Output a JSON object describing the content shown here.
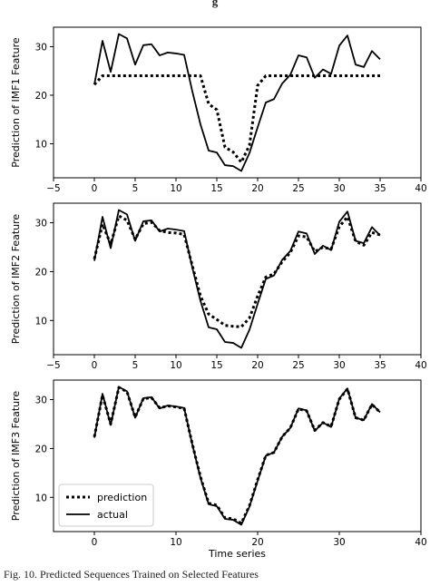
{
  "figure": {
    "title_fragment": "g",
    "caption": "Fig. 10. Predicted Sequences Trained on Selected Features"
  },
  "chart_data": [
    {
      "type": "line",
      "title": "",
      "xlabel": "",
      "ylabel": "Prediction of IMF1 Feature",
      "xlim": [
        -5,
        40
      ],
      "ylim": [
        3,
        34
      ],
      "xticks": [
        -5,
        0,
        5,
        10,
        15,
        20,
        25,
        30,
        35,
        40
      ],
      "yticks": [
        10,
        20,
        30
      ],
      "grid": false,
      "x": [
        0,
        1,
        2,
        3,
        4,
        5,
        6,
        7,
        8,
        9,
        10,
        11,
        12,
        13,
        14,
        15,
        16,
        17,
        18,
        19,
        20,
        21,
        22,
        23,
        24,
        25,
        26,
        27,
        28,
        29,
        30,
        31,
        32,
        33,
        34,
        35
      ],
      "series": [
        {
          "name": "actual",
          "style": "solid",
          "color": "#000000",
          "values": [
            22.2,
            31.2,
            24.8,
            32.6,
            31.7,
            26.3,
            30.3,
            30.5,
            28.2,
            28.8,
            28.6,
            28.3,
            20.8,
            14.0,
            8.6,
            8.2,
            5.6,
            5.4,
            4.4,
            8.1,
            13.4,
            18.5,
            19.2,
            22.4,
            24.2,
            28.2,
            27.8,
            23.6,
            25.3,
            24.4,
            30.2,
            32.3,
            26.3,
            25.8,
            29.1,
            27.4
          ]
        },
        {
          "name": "prediction",
          "style": "dotted",
          "color": "#000000",
          "values": [
            22.2,
            24.0,
            24.0,
            24.0,
            24.0,
            24.0,
            24.0,
            24.0,
            24.0,
            24.0,
            24.0,
            24.0,
            24.0,
            24.0,
            18.2,
            17.0,
            9.3,
            8.3,
            6.2,
            9.7,
            22.0,
            24.0,
            24.0,
            24.0,
            24.0,
            24.0,
            24.0,
            24.0,
            24.0,
            24.0,
            24.0,
            24.0,
            24.0,
            24.0,
            24.0,
            24.0
          ]
        }
      ]
    },
    {
      "type": "line",
      "title": "",
      "xlabel": "",
      "ylabel": "Prediction of IMF2 Feature",
      "xlim": [
        -5,
        40
      ],
      "ylim": [
        3,
        34
      ],
      "xticks": [
        -5,
        0,
        5,
        10,
        15,
        20,
        25,
        30,
        35,
        40
      ],
      "yticks": [
        10,
        20,
        30
      ],
      "grid": false,
      "x": [
        0,
        1,
        2,
        3,
        4,
        5,
        6,
        7,
        8,
        9,
        10,
        11,
        12,
        13,
        14,
        15,
        16,
        17,
        18,
        19,
        20,
        21,
        22,
        23,
        24,
        25,
        26,
        27,
        28,
        29,
        30,
        31,
        32,
        33,
        34,
        35
      ],
      "series": [
        {
          "name": "actual",
          "style": "solid",
          "color": "#000000",
          "values": [
            22.2,
            31.2,
            24.8,
            32.6,
            31.7,
            26.3,
            30.3,
            30.5,
            28.2,
            28.8,
            28.6,
            28.3,
            20.8,
            14.0,
            8.6,
            8.2,
            5.6,
            5.4,
            4.4,
            8.1,
            13.4,
            18.5,
            19.2,
            22.4,
            24.2,
            28.2,
            27.8,
            23.6,
            25.3,
            24.4,
            30.2,
            32.3,
            26.3,
            25.8,
            29.1,
            27.4
          ]
        },
        {
          "name": "prediction",
          "style": "dotted",
          "color": "#000000",
          "values": [
            22.6,
            29.7,
            25.6,
            31.4,
            30.5,
            26.6,
            29.8,
            30.1,
            28.4,
            28.0,
            27.9,
            27.6,
            21.2,
            15.0,
            11.3,
            10.2,
            9.0,
            8.8,
            8.7,
            10.5,
            15.0,
            18.9,
            19.5,
            22.0,
            23.9,
            27.3,
            27.1,
            24.1,
            25.0,
            24.6,
            29.2,
            31.2,
            26.2,
            25.4,
            28.0,
            27.5
          ]
        }
      ]
    },
    {
      "type": "line",
      "title": "",
      "xlabel": "Time series",
      "ylabel": "Prediction of IMF3 Feature",
      "xlim": [
        -5,
        40
      ],
      "ylim": [
        3,
        34
      ],
      "xticks": [
        0,
        10,
        20,
        30,
        40
      ],
      "yticks": [
        10,
        20,
        30
      ],
      "grid": false,
      "legend": {
        "placement": "lower-left",
        "entries": [
          "prediction",
          "actual"
        ]
      },
      "x": [
        0,
        1,
        2,
        3,
        4,
        5,
        6,
        7,
        8,
        9,
        10,
        11,
        12,
        13,
        14,
        15,
        16,
        17,
        18,
        19,
        20,
        21,
        22,
        23,
        24,
        25,
        26,
        27,
        28,
        29,
        30,
        31,
        32,
        33,
        34,
        35
      ],
      "series": [
        {
          "name": "prediction",
          "style": "dotted",
          "color": "#000000",
          "values": [
            22.4,
            30.9,
            25.0,
            32.5,
            31.6,
            26.4,
            30.2,
            30.4,
            28.3,
            28.7,
            28.5,
            28.2,
            20.9,
            14.2,
            8.8,
            8.4,
            5.8,
            5.6,
            4.7,
            8.3,
            13.6,
            18.6,
            19.2,
            22.4,
            24.2,
            28.1,
            27.7,
            23.7,
            25.3,
            24.5,
            30.1,
            32.2,
            26.3,
            25.8,
            29.0,
            27.4
          ]
        },
        {
          "name": "actual",
          "style": "solid",
          "color": "#000000",
          "values": [
            22.2,
            31.2,
            24.8,
            32.6,
            31.7,
            26.3,
            30.3,
            30.5,
            28.2,
            28.8,
            28.6,
            28.3,
            20.8,
            14.0,
            8.6,
            8.2,
            5.6,
            5.4,
            4.4,
            8.1,
            13.4,
            18.5,
            19.2,
            22.4,
            24.2,
            28.2,
            27.8,
            23.6,
            25.3,
            24.4,
            30.2,
            32.3,
            26.3,
            25.8,
            29.1,
            27.4
          ]
        }
      ]
    }
  ]
}
